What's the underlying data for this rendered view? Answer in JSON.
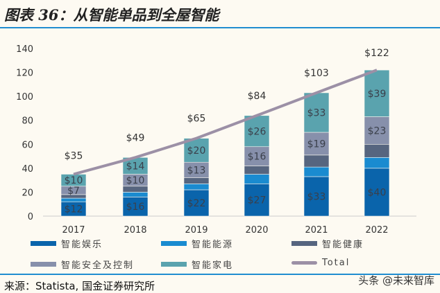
{
  "title": "图表 36：从智能单品到全屋智能",
  "source": "来源：Statista, 国金证券研究所",
  "watermark": "头条 @未来智库",
  "chart_data": {
    "type": "bar",
    "stacked": true,
    "categories": [
      "2017",
      "2018",
      "2019",
      "2020",
      "2021",
      "2022"
    ],
    "ylim": [
      0,
      140
    ],
    "yticks": [
      "0",
      "20",
      "40",
      "60",
      "80",
      "100",
      "120",
      "140"
    ],
    "grid": false,
    "legend_position": "bottom",
    "series": [
      {
        "name": "智能娱乐",
        "color": "#0a64ab",
        "values": [
          12,
          16,
          22,
          27,
          33,
          40
        ],
        "labels": [
          "$12",
          "$16",
          "$22",
          "$27",
          "$33",
          "$40"
        ]
      },
      {
        "name": "智能能源",
        "color": "#1a8bd0",
        "values": [
          3,
          4,
          5,
          8,
          8,
          9
        ],
        "labels": [
          "",
          "",
          "",
          "",
          "",
          ""
        ]
      },
      {
        "name": "智能健康",
        "color": "#56657f",
        "values": [
          3,
          5,
          5,
          7,
          10,
          11
        ],
        "labels": [
          "",
          "",
          "",
          "",
          "",
          ""
        ]
      },
      {
        "name": "智能安全及控制",
        "color": "#8790ab",
        "values": [
          7,
          10,
          13,
          16,
          19,
          23
        ],
        "labels": [
          "$7",
          "$10",
          "$13",
          "$16",
          "$19",
          "$23"
        ]
      },
      {
        "name": "智能家电",
        "color": "#5aa3ae",
        "values": [
          10,
          14,
          20,
          26,
          33,
          39
        ],
        "labels": [
          "$10",
          "$14",
          "$20",
          "$26",
          "$33",
          "$39"
        ]
      }
    ],
    "total": {
      "name": "Total",
      "type": "line",
      "color": "#9c90a6",
      "values": [
        35,
        49,
        65,
        84,
        103,
        122
      ],
      "labels": [
        "$35",
        "$49",
        "$65",
        "$84",
        "$103",
        "$122"
      ]
    }
  }
}
